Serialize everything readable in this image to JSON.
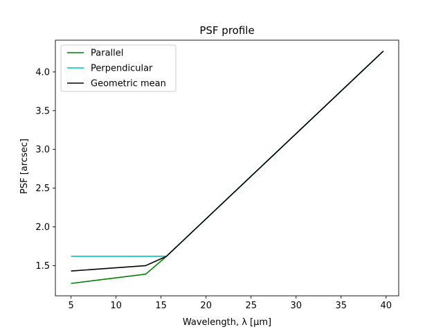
{
  "chart_data": {
    "type": "line",
    "title": "PSF profile",
    "xlabel": "Wavelength, λ [μm]",
    "ylabel": "PSF [arcsec]",
    "xlim": [
      3.26,
      41.4
    ],
    "ylim": [
      1.11,
      4.41
    ],
    "xticks": [
      5,
      10,
      15,
      20,
      25,
      30,
      35,
      40
    ],
    "yticks": [
      1.5,
      2.0,
      2.5,
      3.0,
      3.5,
      4.0
    ],
    "xtick_labels": [
      "5",
      "10",
      "15",
      "20",
      "25",
      "30",
      "35",
      "40"
    ],
    "ytick_labels": [
      "1.5",
      "2.0",
      "2.5",
      "3.0",
      "3.5",
      "4.0"
    ],
    "grid": false,
    "legend_position": "top-left",
    "series": [
      {
        "name": "Parallel",
        "color": "#008000",
        "x": [
          5.0,
          13.3,
          15.6,
          39.7
        ],
        "y": [
          1.27,
          1.39,
          1.62,
          4.27
        ]
      },
      {
        "name": "Perpendicular",
        "color": "#00bfbf",
        "x": [
          5.0,
          15.4,
          15.6,
          39.7
        ],
        "y": [
          1.62,
          1.62,
          1.62,
          4.27
        ]
      },
      {
        "name": "Geometric mean",
        "color": "#000000",
        "x": [
          5.0,
          13.3,
          15.6,
          39.7
        ],
        "y": [
          1.43,
          1.5,
          1.62,
          4.27
        ]
      }
    ]
  }
}
